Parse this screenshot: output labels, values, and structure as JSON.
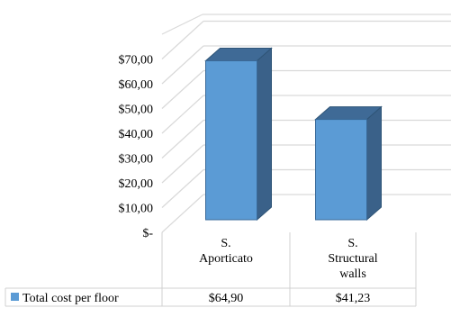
{
  "chart_data": {
    "type": "bar",
    "style": "3d-column-with-data-table",
    "categories": [
      [
        "S.",
        "Aporticato"
      ],
      [
        "S.",
        "Structural",
        "walls"
      ]
    ],
    "series": [
      {
        "name": "Total cost per floor",
        "values": [
          64.9,
          41.23
        ],
        "value_labels": [
          "$64,90",
          "$41,23"
        ]
      }
    ],
    "y_ticks": [
      "$-",
      "$10,00",
      "$20,00",
      "$30,00",
      "$40,00",
      "$50,00",
      "$60,00",
      "$70,00"
    ],
    "ylim": [
      0,
      70
    ],
    "grid": true,
    "legend": "data-table-left",
    "colors": {
      "bar_front": "#5b9bd5",
      "bar_side": "#3a6189",
      "bar_top": "#3f6a96",
      "grid": "#d9d9d9",
      "legend_swatch": "#5b9bd5"
    }
  }
}
